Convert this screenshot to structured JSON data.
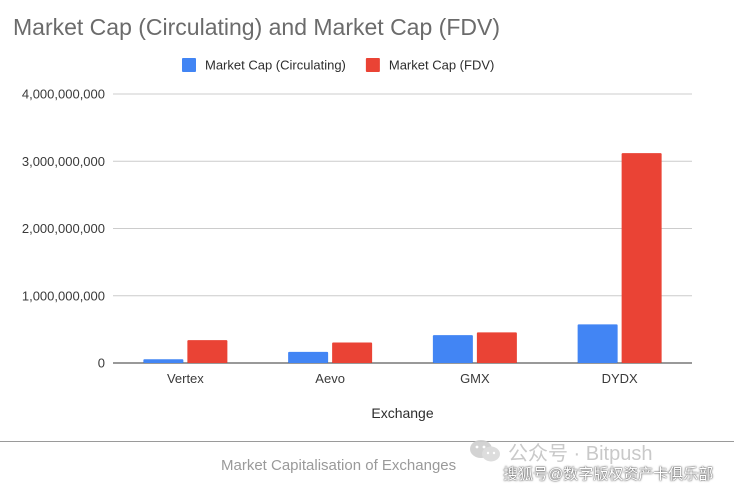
{
  "chart_data": {
    "type": "bar",
    "title": "Market Cap (Circulating) and Market Cap (FDV)",
    "xlabel": "Exchange",
    "ylabel": "",
    "categories": [
      "Vertex",
      "Aevo",
      "GMX",
      "DYDX"
    ],
    "series": [
      {
        "name": "Market Cap (Circulating)",
        "color": "#4285f4",
        "values": [
          55000000,
          165000000,
          415000000,
          575000000
        ]
      },
      {
        "name": "Market Cap (FDV)",
        "color": "#ea4335",
        "values": [
          340000000,
          305000000,
          455000000,
          3120000000
        ]
      }
    ],
    "ylim": [
      0,
      4000000000
    ],
    "yticks": [
      "0",
      "1,000,000,000",
      "2,000,000,000",
      "3,000,000,000",
      "4,000,000,000"
    ],
    "legend_position": "top-center",
    "grid": true
  },
  "caption": "Market Capitalisation of Exchanges",
  "watermark": {
    "line1": "公众号 · Bitpush",
    "line2": "搜狐号@数字版权资产卡俱乐部"
  }
}
